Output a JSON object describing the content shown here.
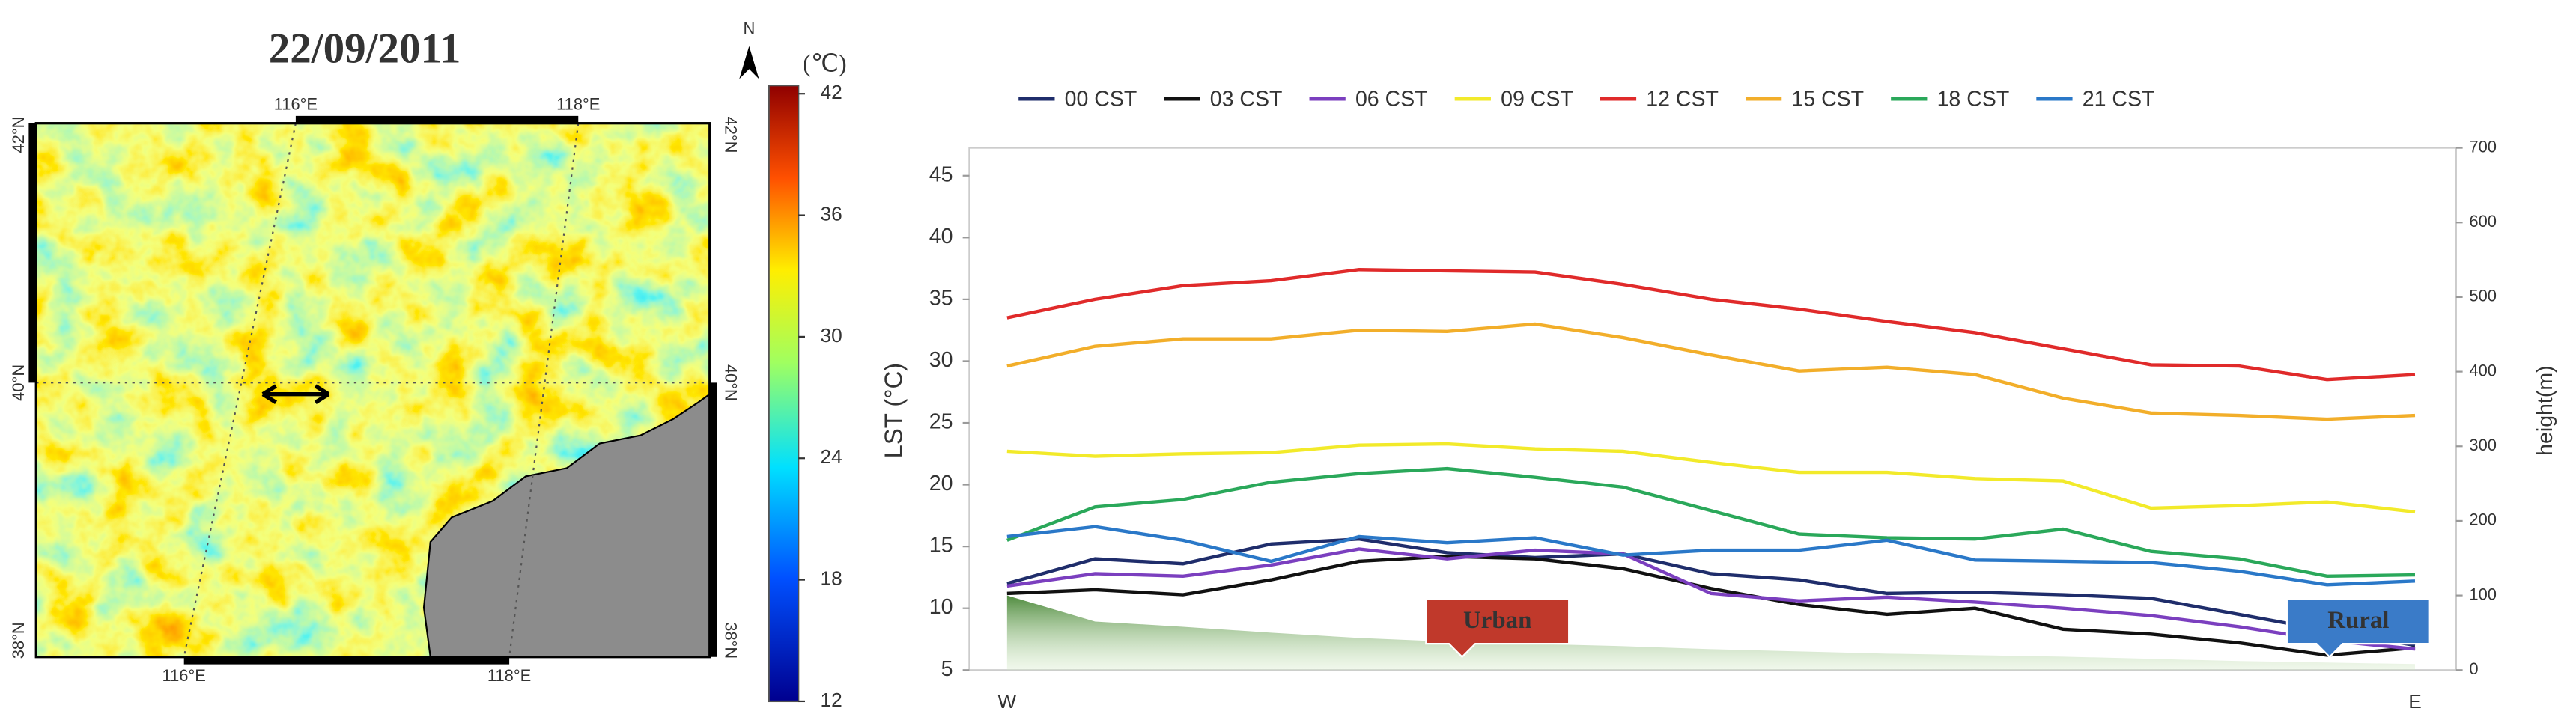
{
  "chart_data": [
    {
      "type": "map",
      "title": "22/09/2011",
      "north": "N",
      "lon_labels": [
        "116°E",
        "118°E"
      ],
      "lat_labels": [
        "42°N",
        "40°N",
        "38°N"
      ],
      "colorbar": {
        "label": "(℃)",
        "lim": [
          12,
          42
        ],
        "ticks": [
          42,
          36,
          30,
          24,
          18,
          12
        ]
      }
    },
    {
      "type": "line",
      "categories": [
        "W",
        null,
        null,
        null,
        null,
        null,
        null,
        null,
        null,
        null,
        null,
        null,
        null,
        null,
        null,
        null,
        "E"
      ],
      "ylabel": "LST (°C)",
      "y2label": "height(m)",
      "ylim": [
        5,
        47.25
      ],
      "yticks": [
        5,
        10,
        15,
        20,
        25,
        30,
        35,
        40,
        45
      ],
      "y2lim": [
        0,
        700
      ],
      "y2ticks": [
        0,
        100,
        200,
        300,
        400,
        500,
        600,
        700
      ],
      "annotations": [
        "Urban",
        "Rural"
      ],
      "series": [
        {
          "name": "00 CST",
          "color": "#1f2d6b",
          "values": [
            12,
            14,
            13.6,
            15.2,
            15.6,
            14.5,
            14.1,
            14.4,
            12.8,
            12.3,
            11.2,
            11.3,
            11.1,
            10.8,
            9.5,
            8.2,
            7
          ]
        },
        {
          "name": "03 CST",
          "color": "#111111",
          "values": [
            11.2,
            11.5,
            11.1,
            12.3,
            13.8,
            14.2,
            14,
            13.2,
            11.6,
            10.3,
            9.5,
            10,
            8.3,
            7.9,
            7.2,
            6.2,
            6.8
          ]
        },
        {
          "name": "06 CST",
          "color": "#7b3fbf",
          "values": [
            11.8,
            12.8,
            12.6,
            13.5,
            14.8,
            14,
            14.7,
            14.4,
            11.2,
            10.6,
            10.9,
            10.5,
            10,
            9.4,
            8.5,
            7.4,
            6.7
          ]
        },
        {
          "name": "09 CST",
          "color": "#f2ea2a",
          "values": [
            22.7,
            22.3,
            22.5,
            22.6,
            23.2,
            23.3,
            22.9,
            22.7,
            21.8,
            21,
            21,
            20.5,
            20.3,
            18.1,
            18.3,
            18.6,
            17.8
          ]
        },
        {
          "name": "12 CST",
          "color": "#e02a2a",
          "values": [
            33.5,
            35,
            36.1,
            36.5,
            37.4,
            37.3,
            37.2,
            36.2,
            35,
            34.2,
            33.2,
            32.3,
            31,
            29.7,
            29.6,
            28.5,
            28.9
          ]
        },
        {
          "name": "15 CST",
          "color": "#f2ae2a",
          "values": [
            29.6,
            31.2,
            31.8,
            31.8,
            32.5,
            32.4,
            33,
            31.9,
            30.5,
            29.2,
            29.5,
            28.9,
            27,
            25.8,
            25.6,
            25.3,
            25.6
          ]
        },
        {
          "name": "18 CST",
          "color": "#2aa85a",
          "values": [
            15.5,
            18.2,
            18.8,
            20.2,
            20.9,
            21.3,
            20.6,
            19.8,
            17.9,
            16,
            15.7,
            15.6,
            16.4,
            14.6,
            14,
            12.6,
            12.7
          ]
        },
        {
          "name": "21 CST",
          "color": "#2a78c8",
          "values": [
            15.8,
            16.6,
            15.5,
            13.8,
            15.8,
            15.3,
            15.7,
            14.3,
            14.7,
            14.7,
            15.5,
            13.9,
            13.8,
            13.7,
            13,
            11.9,
            12.2
          ]
        },
        {
          "type": "area",
          "axis": "y2",
          "color": "#4e9a3a",
          "values": [
            100,
            65,
            58,
            50,
            43,
            38,
            35,
            32,
            28,
            25,
            22,
            20,
            18,
            15,
            12,
            10,
            8
          ]
        }
      ]
    }
  ]
}
